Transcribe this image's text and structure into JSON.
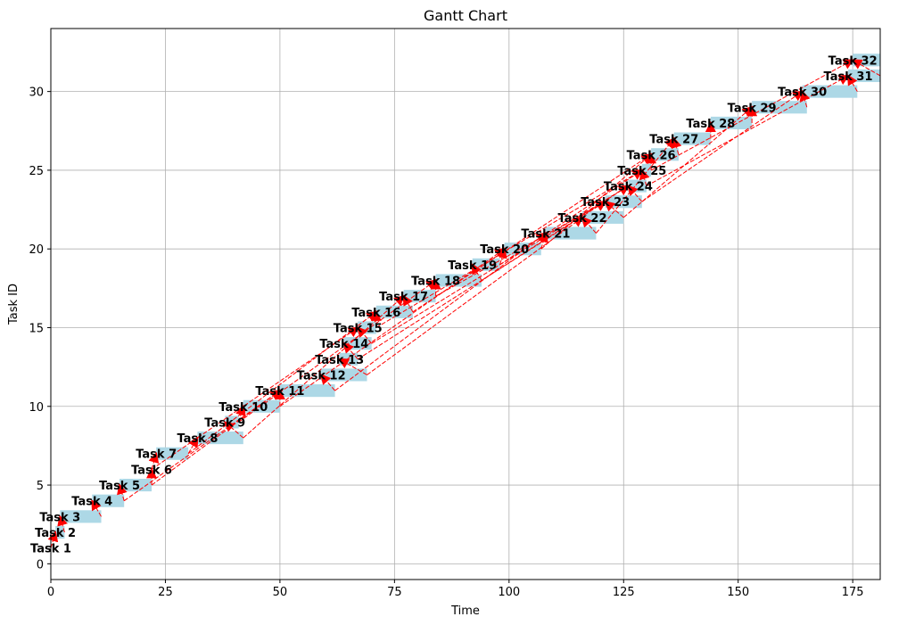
{
  "chart_data": {
    "type": "gantt",
    "title": "Gantt Chart",
    "xlabel": "Time",
    "ylabel": "Task ID",
    "xlim": [
      0,
      181
    ],
    "ylim": [
      -1,
      34
    ],
    "xticks": [
      0,
      25,
      50,
      75,
      100,
      125,
      150,
      175
    ],
    "yticks": [
      0,
      5,
      10,
      15,
      20,
      25,
      30
    ],
    "grid": true,
    "bar_color": "#add8e6",
    "arrow_color": "#ff0000",
    "tasks": [
      {
        "id": 1,
        "name": "Task 1",
        "start": 0,
        "end": 0
      },
      {
        "id": 2,
        "name": "Task 2",
        "start": 1,
        "end": 3
      },
      {
        "id": 3,
        "name": "Task 3",
        "start": 2,
        "end": 11
      },
      {
        "id": 4,
        "name": "Task 4",
        "start": 9,
        "end": 16
      },
      {
        "id": 5,
        "name": "Task 5",
        "start": 15,
        "end": 22
      },
      {
        "id": 6,
        "name": "Task 6",
        "start": 22,
        "end": 22
      },
      {
        "id": 7,
        "name": "Task 7",
        "start": 23,
        "end": 30
      },
      {
        "id": 8,
        "name": "Task 8",
        "start": 32,
        "end": 42
      },
      {
        "id": 9,
        "name": "Task 9",
        "start": 38,
        "end": 41
      },
      {
        "id": 10,
        "name": "Task 10",
        "start": 42,
        "end": 50
      },
      {
        "id": 11,
        "name": "Task 11",
        "start": 50,
        "end": 62
      },
      {
        "id": 12,
        "name": "Task 12",
        "start": 59,
        "end": 69
      },
      {
        "id": 13,
        "name": "Task 13",
        "start": 63,
        "end": 67
      },
      {
        "id": 14,
        "name": "Task 14",
        "start": 64,
        "end": 70
      },
      {
        "id": 15,
        "name": "Task 15",
        "start": 67,
        "end": 71
      },
      {
        "id": 16,
        "name": "Task 16",
        "start": 71,
        "end": 79
      },
      {
        "id": 17,
        "name": "Task 17",
        "start": 77,
        "end": 84
      },
      {
        "id": 18,
        "name": "Task 18",
        "start": 84,
        "end": 94
      },
      {
        "id": 19,
        "name": "Task 19",
        "start": 92,
        "end": 98
      },
      {
        "id": 20,
        "name": "Task 20",
        "start": 99,
        "end": 107
      },
      {
        "id": 21,
        "name": "Task 21",
        "start": 108,
        "end": 119
      },
      {
        "id": 22,
        "name": "Task 22",
        "start": 116,
        "end": 125
      },
      {
        "id": 23,
        "name": "Task 23",
        "start": 121,
        "end": 129
      },
      {
        "id": 24,
        "name": "Task 24",
        "start": 126,
        "end": 130
      },
      {
        "id": 25,
        "name": "Task 25",
        "start": 129,
        "end": 131
      },
      {
        "id": 26,
        "name": "Task 26",
        "start": 131,
        "end": 137
      },
      {
        "id": 27,
        "name": "Task 27",
        "start": 136,
        "end": 144
      },
      {
        "id": 28,
        "name": "Task 28",
        "start": 144,
        "end": 153
      },
      {
        "id": 29,
        "name": "Task 29",
        "start": 153,
        "end": 165
      },
      {
        "id": 30,
        "name": "Task 30",
        "start": 164,
        "end": 176
      },
      {
        "id": 31,
        "name": "Task 31",
        "start": 174,
        "end": 181
      },
      {
        "id": 32,
        "name": "Task 32",
        "start": 175,
        "end": 181
      }
    ],
    "dependencies": [
      [
        1,
        2
      ],
      [
        2,
        3
      ],
      [
        3,
        4
      ],
      [
        4,
        5
      ],
      [
        5,
        6
      ],
      [
        6,
        7
      ],
      [
        7,
        8
      ],
      [
        8,
        9
      ],
      [
        9,
        10
      ],
      [
        5,
        11
      ],
      [
        10,
        11
      ],
      [
        11,
        12
      ],
      [
        12,
        13
      ],
      [
        13,
        14
      ],
      [
        14,
        15
      ],
      [
        15,
        16
      ],
      [
        16,
        17
      ],
      [
        17,
        18
      ],
      [
        18,
        19
      ],
      [
        19,
        20
      ],
      [
        20,
        21
      ],
      [
        21,
        22
      ],
      [
        22,
        23
      ],
      [
        23,
        24
      ],
      [
        24,
        25
      ],
      [
        25,
        26
      ],
      [
        26,
        27
      ],
      [
        27,
        28
      ],
      [
        28,
        29
      ],
      [
        29,
        30
      ],
      [
        30,
        31
      ],
      [
        31,
        32
      ],
      [
        8,
        17
      ],
      [
        9,
        18
      ],
      [
        10,
        20
      ],
      [
        11,
        21
      ],
      [
        12,
        22
      ],
      [
        13,
        23
      ],
      [
        14,
        24
      ],
      [
        15,
        25
      ],
      [
        16,
        26
      ],
      [
        7,
        16
      ],
      [
        6,
        15
      ],
      [
        18,
        24
      ],
      [
        19,
        25
      ],
      [
        20,
        26
      ],
      [
        21,
        27
      ],
      [
        22,
        29
      ],
      [
        23,
        30
      ],
      [
        24,
        31
      ],
      [
        25,
        32
      ],
      [
        17,
        23
      ],
      [
        4,
        11
      ]
    ]
  }
}
